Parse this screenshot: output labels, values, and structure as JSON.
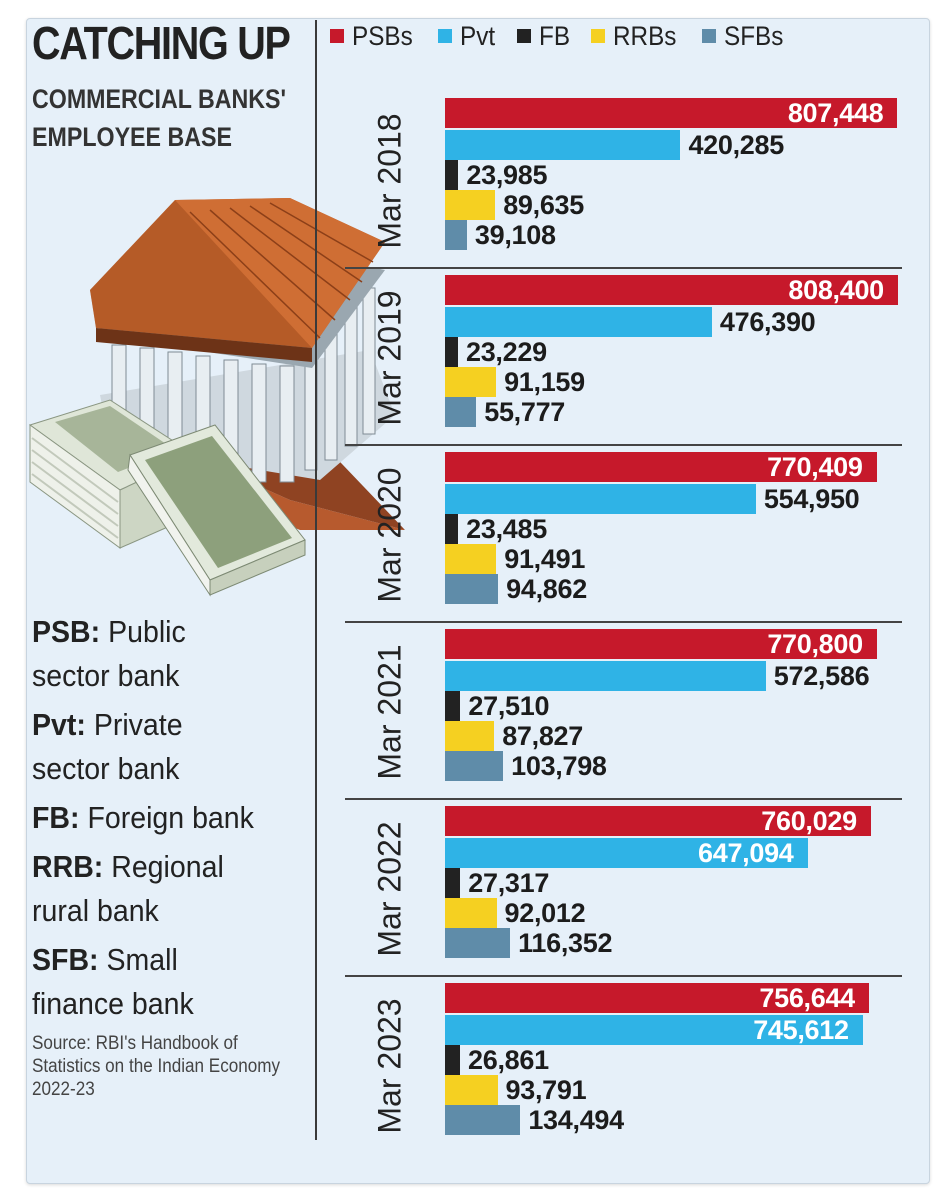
{
  "header": {
    "title": "CATCHING UP",
    "subtitle_line1": "COMMERCIAL BANKS'",
    "subtitle_line2": "EMPLOYEE BASE"
  },
  "definitions": [
    {
      "abbr": "PSB:",
      "line1": "Public",
      "line2": "sector bank"
    },
    {
      "abbr": "Pvt:",
      "line1": "Private",
      "line2": "sector bank"
    },
    {
      "abbr": "FB:",
      "line1": "Foreign bank",
      "line2": ""
    },
    {
      "abbr": "RRB:",
      "line1": "Regional",
      "line2": "rural bank"
    },
    {
      "abbr": "SFB:",
      "line1": "Small",
      "line2": "finance bank"
    }
  ],
  "source": "Source: RBI's Handbook of Statistics on the Indian Economy 2022-23",
  "colors": {
    "PSBs": "#c6192b",
    "Pvt": "#2fb3e6",
    "FB": "#222222",
    "RRBs": "#f5d021",
    "SFBs": "#5f8ca9"
  },
  "illustration_icons": [
    "bank-building-icon",
    "currency-bundle-icon"
  ],
  "chart_data": {
    "type": "bar",
    "orientation": "horizontal",
    "title": "CATCHING UP",
    "subtitle": "COMMERCIAL BANKS' EMPLOYEE BASE",
    "legend": {
      "placement": "top",
      "entries": [
        "PSBs",
        "Pvt",
        "FB",
        "RRBs",
        "SFBs"
      ]
    },
    "xlim": [
      0,
      830000
    ],
    "grid": false,
    "categories": [
      "Mar 2018",
      "Mar 2019",
      "Mar 2020",
      "Mar 2021",
      "Mar 2022",
      "Mar 2023"
    ],
    "series": [
      {
        "name": "PSBs",
        "values": [
          807448,
          808400,
          770409,
          770800,
          760029,
          756644
        ],
        "labels": [
          "807,448",
          "808,400",
          "770,409",
          "770,800",
          "760,029",
          "756,644"
        ]
      },
      {
        "name": "Pvt",
        "values": [
          420285,
          476390,
          554950,
          572586,
          647094,
          745612
        ],
        "labels": [
          "420,285",
          "476,390",
          "554,950",
          "572,586",
          "647,094",
          "745,612"
        ]
      },
      {
        "name": "FB",
        "values": [
          23985,
          23229,
          23485,
          27510,
          27317,
          26861
        ],
        "labels": [
          "23,985",
          "23,229",
          "23,485",
          "27,510",
          "27,317",
          "26,861"
        ]
      },
      {
        "name": "RRBs",
        "values": [
          89635,
          91159,
          91491,
          87827,
          92012,
          93791
        ],
        "labels": [
          "89,635",
          "91,159",
          "91,491",
          "87,827",
          "92,012",
          "93,791"
        ]
      },
      {
        "name": "SFBs",
        "values": [
          39108,
          55777,
          94862,
          103798,
          116352,
          134494
        ],
        "labels": [
          "39,108",
          "55,777",
          "94,862",
          "103,798",
          "116,352",
          "134,494"
        ]
      }
    ]
  }
}
